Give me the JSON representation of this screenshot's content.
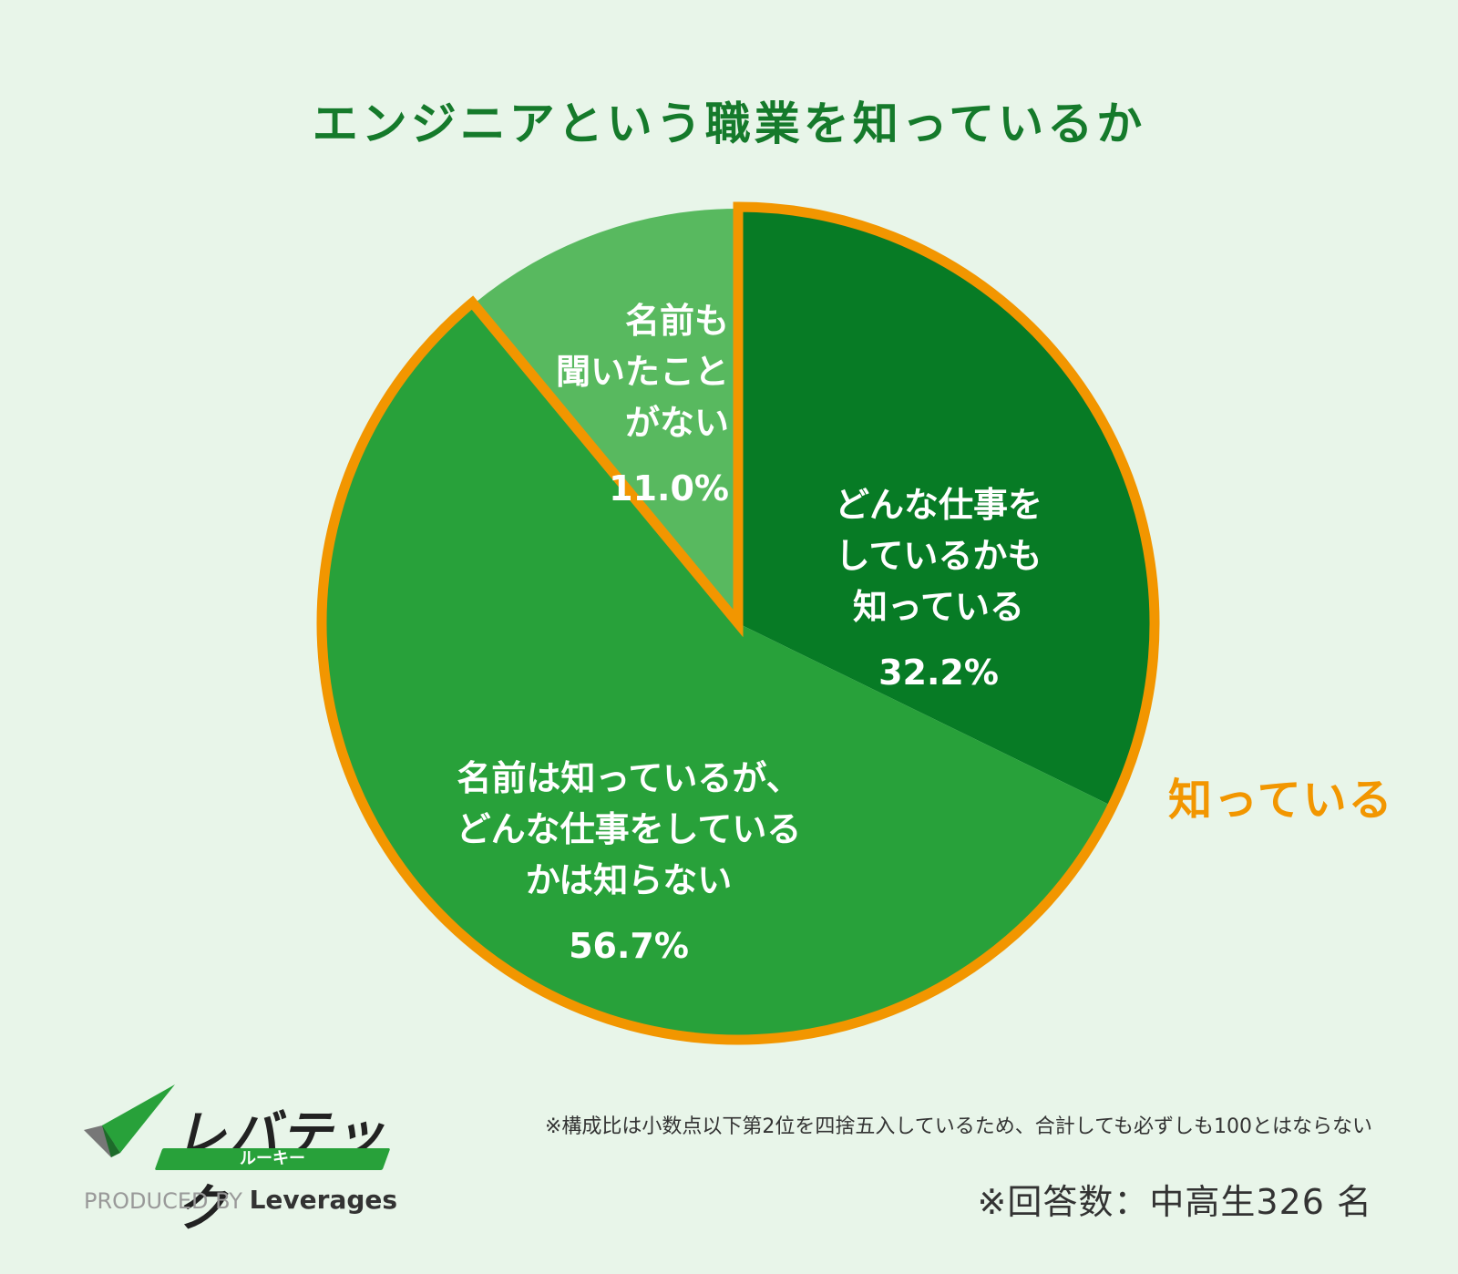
{
  "title": "エンジニアという職業を知っているか",
  "colors": {
    "title": "#157a2b",
    "slice_dark": "#077b25",
    "slice_mid": "#28a13a",
    "slice_light": "#58b95f",
    "outline": "#f29600",
    "text_dark": "#333333"
  },
  "chart_data": {
    "type": "pie",
    "title": "エンジニアという職業を知っているか",
    "unit": "%",
    "slices": [
      {
        "label": "どんな仕事を\nしているかも\n知っている",
        "value": 32.2,
        "value_label": "32.2%",
        "color": "#077b25"
      },
      {
        "label": "名前は知っているが、\nどんな仕事をしている\nかは知らない",
        "value": 56.7,
        "value_label": "56.7%",
        "color": "#28a13a"
      },
      {
        "label": "名前も\n聞いたこと\nがない",
        "value": 11.0,
        "value_label": "11.0%",
        "color": "#58b95f"
      }
    ],
    "group": {
      "label": "知っている",
      "slices": [
        0,
        1
      ]
    }
  },
  "footer": {
    "note": "※構成比は小数点以下第2位を四捨五入しているため、合計しても必ずしも100とはならない",
    "respondents": "※回答数：中高生326 名"
  },
  "logo": {
    "brand": "レバテック",
    "sub": "ルーキー",
    "produced_by": "PRODUCED BY",
    "company": "Leverages"
  }
}
